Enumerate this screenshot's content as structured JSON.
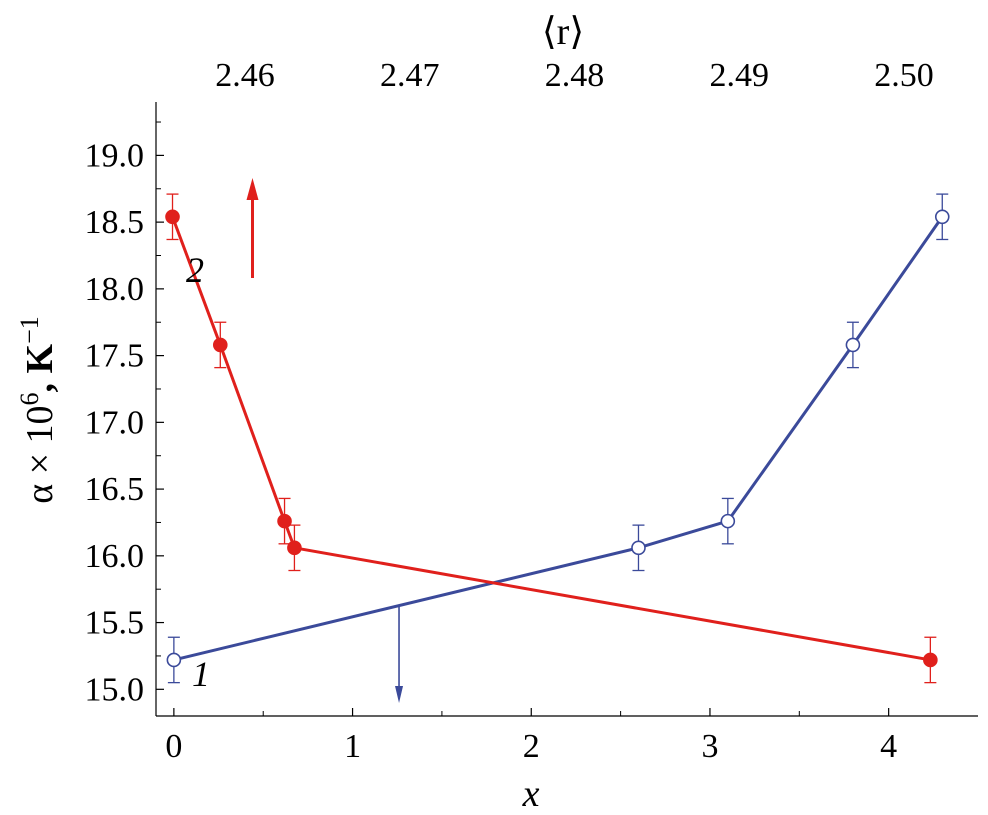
{
  "chart_data": {
    "type": "line",
    "x_axis_bottom": {
      "label": "x",
      "range": [
        -0.1,
        4.5
      ],
      "ticks": [
        0,
        1,
        2,
        3,
        4
      ],
      "tick_labels": [
        "0",
        "1",
        "2",
        "3",
        "4"
      ]
    },
    "x_axis_top": {
      "label": "⟨r⟩",
      "ticks": [
        2.46,
        2.47,
        2.48,
        2.49,
        2.5
      ],
      "tick_labels": [
        "2.46",
        "2.47",
        "2.48",
        "2.49",
        "2.50"
      ]
    },
    "y_axis": {
      "label_main": "α × 10",
      "label_sup": "6",
      "label_unit": ", K",
      "label_unit_sup": "−1",
      "range": [
        14.8,
        19.4
      ],
      "ticks": [
        15.0,
        15.5,
        16.0,
        16.5,
        17.0,
        17.5,
        18.0,
        18.5,
        19.0
      ],
      "tick_labels": [
        "15.0",
        "15.5",
        "16.0",
        "16.5",
        "17.0",
        "17.5",
        "18.0",
        "18.5",
        "19.0"
      ]
    },
    "series": [
      {
        "label": "1",
        "axis": "bottom",
        "color": "#3b4a9a",
        "marker": "open-circle",
        "x": [
          0.0,
          2.6,
          3.1,
          3.8,
          4.3
        ],
        "y": [
          15.22,
          16.06,
          16.26,
          17.58,
          18.54
        ],
        "err": [
          0.17,
          0.17,
          0.17,
          0.17,
          0.17
        ],
        "annotation_arrow": "down"
      },
      {
        "label": "2",
        "axis": "top",
        "color": "#e0201c",
        "marker": "filled-circle",
        "x": [
          2.4556,
          2.4585,
          2.4624,
          2.463,
          2.5016
        ],
        "y": [
          18.54,
          17.58,
          16.26,
          16.06,
          15.22
        ],
        "err": [
          0.17,
          0.17,
          0.17,
          0.17,
          0.17
        ],
        "annotation_arrow": "up"
      }
    ],
    "grid": false
  }
}
